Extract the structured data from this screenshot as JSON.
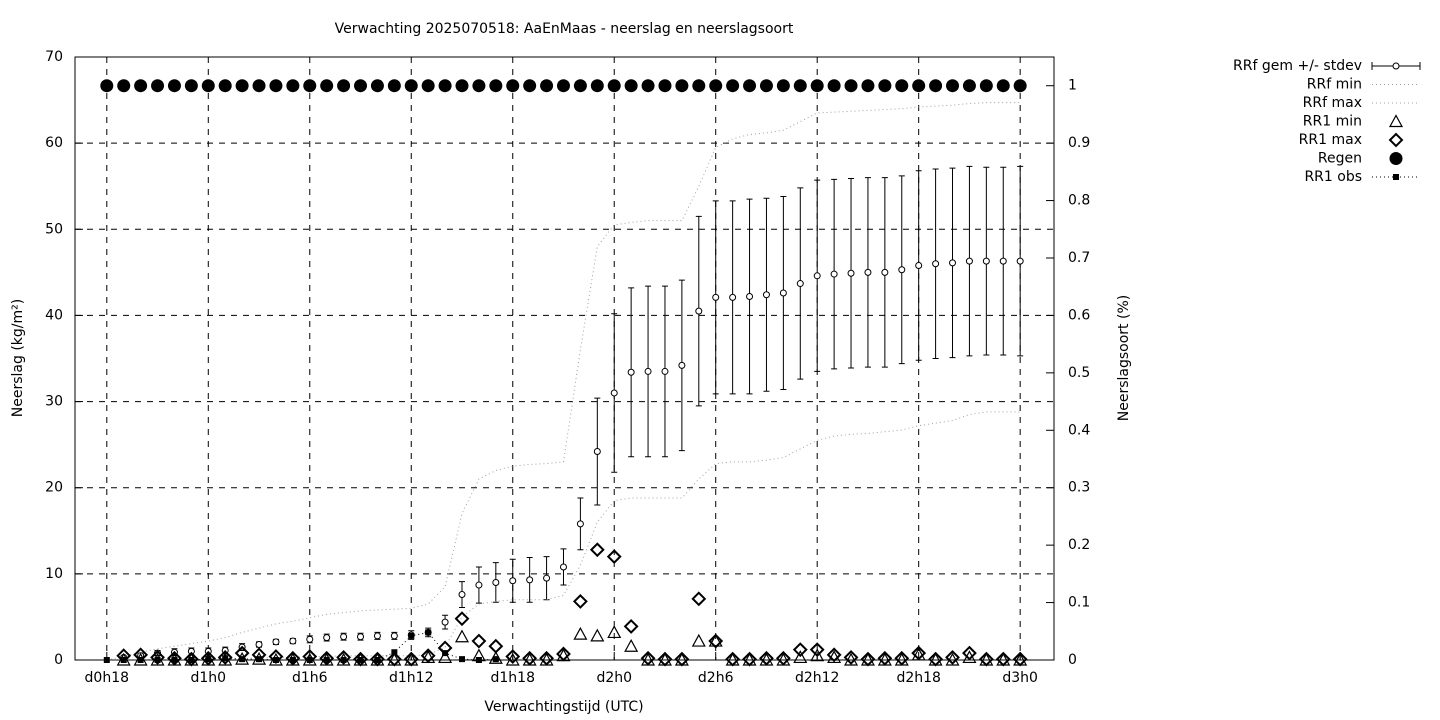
{
  "chart_data": {
    "type": "errorbar",
    "title": "Verwachting 2025070518: AaEnMaas - neerslag en neerslagsoort",
    "xlabel": "Verwachtingstijd (UTC)",
    "ylabel": "Neerslag (kg/m²)",
    "y2label": "Neerslagsoort (%)",
    "grid": true,
    "legend": "outside-right",
    "xlim": [
      16.12,
      74
    ],
    "xticks": [
      {
        "value": 18,
        "label": "d0h18"
      },
      {
        "value": 24,
        "label": "d1h0"
      },
      {
        "value": 30,
        "label": "d1h6"
      },
      {
        "value": 36,
        "label": "d1h12"
      },
      {
        "value": 42,
        "label": "d1h18"
      },
      {
        "value": 48,
        "label": "d2h0"
      },
      {
        "value": 54,
        "label": "d2h6"
      },
      {
        "value": 60,
        "label": "d2h12"
      },
      {
        "value": 66,
        "label": "d2h18"
      },
      {
        "value": 72,
        "label": "d3h0"
      }
    ],
    "ylim": [
      0,
      70
    ],
    "yticks": [
      0,
      10,
      20,
      30,
      40,
      50,
      60,
      70
    ],
    "y2lim": [
      0,
      1.05
    ],
    "y2ticks": [
      0,
      0.1,
      0.2,
      0.3,
      0.4,
      0.5,
      0.6,
      0.7,
      0.8,
      0.9,
      1
    ],
    "x": [
      18,
      19,
      20,
      21,
      22,
      23,
      24,
      25,
      26,
      27,
      28,
      29,
      30,
      31,
      32,
      33,
      34,
      35,
      36,
      37,
      38,
      39,
      40,
      41,
      42,
      43,
      44,
      45,
      46,
      47,
      48,
      49,
      50,
      51,
      52,
      53,
      54,
      55,
      56,
      57,
      58,
      59,
      60,
      61,
      62,
      63,
      64,
      65,
      66,
      67,
      68,
      69,
      70,
      71,
      72
    ],
    "series": [
      {
        "name": "RRf gem +/- stdev",
        "color": "#000000",
        "marker": "circle-open",
        "line": "errorbar",
        "values": [
          null,
          0.3,
          0.5,
          0.8,
          0.9,
          1.0,
          1.0,
          1.1,
          1.5,
          1.8,
          2.1,
          2.2,
          2.4,
          2.6,
          2.7,
          2.7,
          2.8,
          2.8,
          2.9,
          3.2,
          4.4,
          7.6,
          8.7,
          9.0,
          9.2,
          9.3,
          9.5,
          10.8,
          15.8,
          24.2,
          31.0,
          33.4,
          33.5,
          33.5,
          34.2,
          40.5,
          42.1,
          42.1,
          42.2,
          42.4,
          42.6,
          43.7,
          44.6,
          44.8,
          44.9,
          45.0,
          45.0,
          45.3,
          45.8,
          46.0,
          46.1,
          46.3,
          46.3,
          46.3,
          46.3
        ],
        "errors": [
          null,
          0.2,
          0.3,
          0.3,
          0.4,
          0.4,
          0.4,
          0.4,
          0.4,
          0.3,
          0.3,
          0.3,
          0.4,
          0.4,
          0.4,
          0.4,
          0.4,
          0.4,
          0.5,
          0.5,
          0.8,
          1.5,
          2.1,
          2.3,
          2.5,
          2.6,
          2.5,
          2.1,
          3.0,
          6.2,
          9.2,
          9.8,
          9.9,
          9.9,
          9.9,
          11.0,
          11.2,
          11.2,
          11.3,
          11.2,
          11.2,
          11.1,
          11.1,
          11.0,
          11.0,
          11.0,
          11.0,
          10.9,
          11.0,
          11.0,
          11.0,
          11.0,
          10.9,
          10.9,
          11.0
        ]
      },
      {
        "name": "RRf min",
        "color": "#a0a0a0",
        "marker": "none",
        "line": "dotted",
        "values": [
          0,
          0,
          0,
          0,
          0,
          0,
          0.1,
          0.1,
          0.2,
          0.2,
          0.3,
          0.3,
          0.4,
          0.4,
          0.5,
          0.5,
          0.5,
          0.5,
          0.5,
          0.6,
          1.5,
          5,
          6.5,
          6.8,
          7,
          7,
          7,
          7.5,
          11,
          16,
          18.5,
          18.8,
          18.8,
          18.8,
          18.8,
          21,
          22.8,
          23,
          23,
          23.2,
          23.5,
          24.5,
          25.5,
          26,
          26.2,
          26.3,
          26.5,
          26.7,
          27.2,
          27.5,
          27.8,
          28.5,
          28.8,
          28.8,
          28.8
        ]
      },
      {
        "name": "RRf max",
        "color": "#a0a0a0",
        "marker": "none",
        "line": "dotted",
        "values": [
          0,
          0.4,
          0.9,
          1.3,
          1.6,
          1.9,
          2.2,
          2.6,
          3.2,
          3.7,
          4.2,
          4.5,
          4.9,
          5.3,
          5.5,
          5.7,
          5.8,
          5.9,
          6.0,
          6.5,
          8.5,
          17,
          21,
          22,
          22.5,
          22.7,
          22.8,
          23,
          36,
          48,
          50.5,
          50.8,
          51,
          51,
          51,
          55,
          59.5,
          60.5,
          61,
          61.2,
          61.5,
          62.5,
          63.5,
          63.6,
          63.7,
          63.8,
          63.9,
          64,
          64.2,
          64.3,
          64.4,
          64.6,
          64.7,
          64.7,
          64.7
        ]
      },
      {
        "name": "RR1 min",
        "color": "#000000",
        "marker": "triangle",
        "line": "none",
        "values": [
          null,
          0,
          0,
          0,
          0,
          0,
          0,
          0,
          0.1,
          0.1,
          0,
          0,
          0,
          0,
          0,
          0,
          0,
          0,
          0,
          0.3,
          0.3,
          2.7,
          0.5,
          0.2,
          0,
          0,
          0,
          0.5,
          3,
          2.8,
          3.2,
          1.6,
          0,
          0,
          0,
          2.2,
          2.2,
          0,
          0,
          0,
          0,
          0.3,
          0.5,
          0.3,
          0,
          0,
          0,
          0,
          0.6,
          0,
          0,
          0.3,
          0,
          0,
          0
        ]
      },
      {
        "name": "RR1 max",
        "color": "#000000",
        "marker": "diamond",
        "line": "none",
        "values": [
          null,
          0.5,
          0.6,
          0.3,
          0.2,
          0.1,
          0.2,
          0.3,
          0.8,
          0.6,
          0.4,
          0.2,
          0.4,
          0.2,
          0.3,
          0.1,
          0.1,
          0.1,
          0.1,
          0.5,
          1.4,
          4.8,
          2.2,
          1.6,
          0.4,
          0.2,
          0.2,
          0.7,
          6.8,
          12.8,
          12,
          3.9,
          0.2,
          0.1,
          0.1,
          7.1,
          2.2,
          0.1,
          0.1,
          0.2,
          0.2,
          1.2,
          1.2,
          0.6,
          0.3,
          0.1,
          0.2,
          0.2,
          0.8,
          0.1,
          0.3,
          0.8,
          0.1,
          0.1,
          0.1
        ]
      },
      {
        "name": "Regen",
        "color": "#000000",
        "marker": "circle-filled",
        "line": "none",
        "axis": "y2",
        "values": [
          1,
          1,
          1,
          1,
          1,
          1,
          1,
          1,
          1,
          1,
          1,
          1,
          1,
          1,
          1,
          1,
          1,
          1,
          1,
          1,
          1,
          1,
          1,
          1,
          1,
          1,
          1,
          1,
          1,
          1,
          1,
          1,
          1,
          1,
          1,
          1,
          1,
          1,
          1,
          1,
          1,
          1,
          1,
          1,
          1,
          1,
          1,
          1,
          1,
          1,
          1,
          1,
          1,
          1,
          1
        ]
      },
      {
        "name": "RR1 obs",
        "color": "#000000",
        "marker": "square",
        "line": "dotted",
        "values": [
          0,
          0,
          0,
          0,
          0,
          0,
          0.1,
          0.2,
          0.1,
          0.1,
          0,
          0,
          0,
          0,
          0,
          0,
          0,
          0.9,
          2.8,
          3.2,
          0.8,
          0.1,
          0,
          0.1,
          null,
          null,
          null,
          null,
          null,
          null,
          null,
          null,
          null,
          null,
          null,
          null,
          null,
          null,
          null,
          null,
          null,
          null,
          null,
          null,
          null,
          null,
          null,
          null,
          null,
          null,
          null,
          null,
          null,
          null,
          null
        ]
      }
    ]
  }
}
